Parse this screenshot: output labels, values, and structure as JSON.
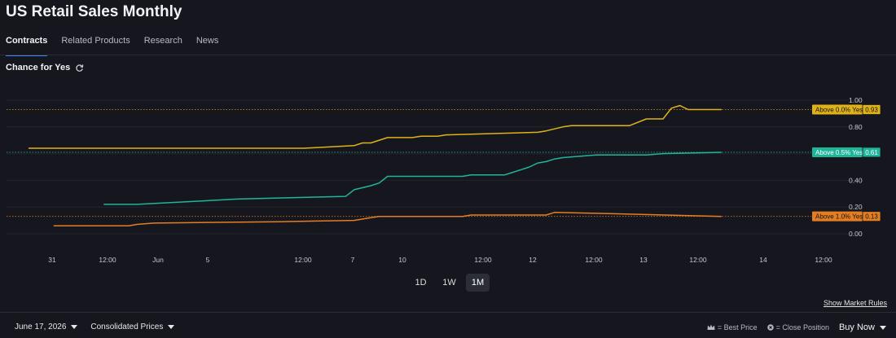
{
  "page": {
    "title": "US Retail Sales Monthly"
  },
  "tabs": [
    {
      "label": "Contracts",
      "active": true
    },
    {
      "label": "Related Products",
      "active": false
    },
    {
      "label": "Research",
      "active": false
    },
    {
      "label": "News",
      "active": false
    }
  ],
  "chart_header": {
    "label": "Chance for Yes",
    "icon": "refresh-icon"
  },
  "range_buttons": [
    {
      "label": "1D",
      "active": false
    },
    {
      "label": "1W",
      "active": false
    },
    {
      "label": "1M",
      "active": true
    }
  ],
  "market_rules_link": "Show Market Rules",
  "footer": {
    "date": "June 17, 2026",
    "price_mode": "Consolidated Prices",
    "best_price_legend": "= Best Price",
    "close_position_legend": "= Close Position",
    "buy_now": "Buy Now"
  },
  "colors": {
    "background": "#16171e",
    "tab_accent": "#3a86f5",
    "above_0": "#e0b21a",
    "above_0_5": "#1fb59a",
    "above_1_0": "#e37e22"
  },
  "chart_data": {
    "type": "line",
    "x_ticks": [
      "31",
      "12:00",
      "Jun",
      "5",
      "12:00",
      "7",
      "10",
      "12:00",
      "12",
      "12:00",
      "13",
      "12:00",
      "14",
      "12:00"
    ],
    "y_ticks": [
      "1.00",
      "0.80",
      "0.60",
      "0.40",
      "0.20",
      "0.00"
    ],
    "ylim": [
      0,
      1
    ],
    "series": [
      {
        "name": "Above 0.0% Yes",
        "last": "0.93",
        "color": "#e0b21a",
        "points": [
          [
            0,
            0.64
          ],
          [
            0.33,
            0.64
          ],
          [
            0.36,
            0.65
          ],
          [
            0.39,
            0.66
          ],
          [
            0.4,
            0.68
          ],
          [
            0.41,
            0.68
          ],
          [
            0.43,
            0.72
          ],
          [
            0.46,
            0.72
          ],
          [
            0.47,
            0.73
          ],
          [
            0.49,
            0.73
          ],
          [
            0.5,
            0.74
          ],
          [
            0.61,
            0.76
          ],
          [
            0.62,
            0.77
          ],
          [
            0.64,
            0.8
          ],
          [
            0.65,
            0.81
          ],
          [
            0.72,
            0.81
          ],
          [
            0.74,
            0.86
          ],
          [
            0.76,
            0.86
          ],
          [
            0.77,
            0.94
          ],
          [
            0.78,
            0.96
          ],
          [
            0.79,
            0.93
          ],
          [
            0.83,
            0.93
          ]
        ]
      },
      {
        "name": "Above 0.5% Yes",
        "last": "0.61",
        "color": "#1fb59a",
        "points": [
          [
            0.09,
            0.22
          ],
          [
            0.13,
            0.22
          ],
          [
            0.25,
            0.26
          ],
          [
            0.38,
            0.28
          ],
          [
            0.39,
            0.33
          ],
          [
            0.41,
            0.36
          ],
          [
            0.42,
            0.38
          ],
          [
            0.43,
            0.43
          ],
          [
            0.52,
            0.43
          ],
          [
            0.53,
            0.44
          ],
          [
            0.57,
            0.44
          ],
          [
            0.58,
            0.46
          ],
          [
            0.59,
            0.48
          ],
          [
            0.6,
            0.5
          ],
          [
            0.61,
            0.53
          ],
          [
            0.62,
            0.54
          ],
          [
            0.63,
            0.56
          ],
          [
            0.64,
            0.57
          ],
          [
            0.66,
            0.58
          ],
          [
            0.68,
            0.59
          ],
          [
            0.74,
            0.59
          ],
          [
            0.76,
            0.6
          ],
          [
            0.83,
            0.61
          ]
        ]
      },
      {
        "name": "Above 1.0% Yes",
        "last": "0.13",
        "color": "#e37e22",
        "points": [
          [
            0.03,
            0.06
          ],
          [
            0.12,
            0.06
          ],
          [
            0.13,
            0.07
          ],
          [
            0.15,
            0.08
          ],
          [
            0.3,
            0.09
          ],
          [
            0.39,
            0.1
          ],
          [
            0.41,
            0.12
          ],
          [
            0.42,
            0.13
          ],
          [
            0.52,
            0.13
          ],
          [
            0.53,
            0.14
          ],
          [
            0.62,
            0.14
          ],
          [
            0.63,
            0.16
          ],
          [
            0.7,
            0.15
          ],
          [
            0.83,
            0.13
          ]
        ]
      }
    ]
  }
}
